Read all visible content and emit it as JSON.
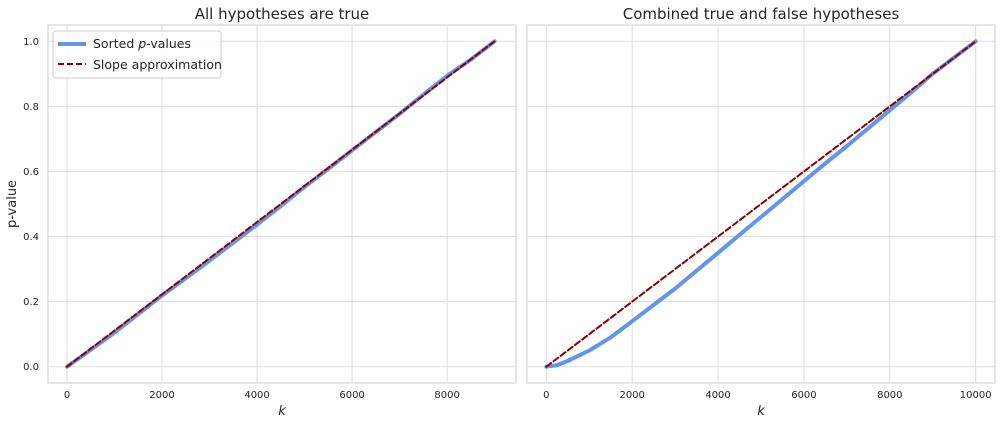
{
  "chart_data": [
    {
      "type": "line",
      "title": "All hypotheses are true",
      "xlabel": "k",
      "ylabel": "p-value",
      "xlim": [
        -400,
        9450
      ],
      "ylim": [
        -0.05,
        1.05
      ],
      "xticks": [
        0,
        2000,
        4000,
        6000,
        8000
      ],
      "yticks": [
        0.0,
        0.2,
        0.4,
        0.6,
        0.8,
        1.0
      ],
      "ytick_labels": [
        "0.0",
        "0.2",
        "0.4",
        "0.6",
        "0.8",
        "1.0"
      ],
      "grid": true,
      "legend": {
        "placement": "top-left",
        "entries": [
          {
            "label_prefix": "Sorted ",
            "label_italic": "p",
            "label_suffix": "-values"
          },
          {
            "label": "Slope approximation"
          }
        ]
      },
      "series": [
        {
          "name": "Sorted p-values",
          "color": "#6495ed",
          "style": "solid",
          "x": [
            0,
            500,
            1000,
            1500,
            2000,
            2500,
            3000,
            3500,
            4000,
            4500,
            5000,
            5500,
            6000,
            6500,
            7000,
            7500,
            8000,
            8500,
            9000
          ],
          "y": [
            0.0,
            0.052,
            0.105,
            0.162,
            0.219,
            0.272,
            0.326,
            0.381,
            0.437,
            0.494,
            0.553,
            0.608,
            0.665,
            0.721,
            0.777,
            0.836,
            0.894,
            0.944,
            1.0
          ]
        },
        {
          "name": "Slope approximation",
          "color": "#8b0000",
          "style": "dashed",
          "x": [
            0,
            9000
          ],
          "y": [
            0.0,
            1.0
          ]
        }
      ]
    },
    {
      "type": "line",
      "title": "Combined true and false hypotheses",
      "xlabel": "k",
      "ylabel": "",
      "xlim": [
        -450,
        10450
      ],
      "ylim": [
        -0.05,
        1.05
      ],
      "xticks": [
        0,
        2000,
        4000,
        6000,
        8000,
        10000
      ],
      "yticks": [
        0.0,
        0.2,
        0.4,
        0.6,
        0.8,
        1.0
      ],
      "grid": true,
      "series": [
        {
          "name": "Sorted p-values",
          "color": "#6495ed",
          "style": "solid",
          "x": [
            0,
            250,
            500,
            1000,
            1500,
            2000,
            2500,
            3000,
            3500,
            4000,
            4500,
            5000,
            5500,
            6000,
            6500,
            7000,
            7500,
            8000,
            8500,
            9000,
            9500,
            10000
          ],
          "y": [
            0.0,
            0.005,
            0.018,
            0.05,
            0.09,
            0.14,
            0.19,
            0.24,
            0.295,
            0.35,
            0.405,
            0.46,
            0.515,
            0.57,
            0.625,
            0.678,
            0.733,
            0.788,
            0.843,
            0.9,
            0.95,
            1.0
          ]
        },
        {
          "name": "Slope approximation",
          "color": "#8b0000",
          "style": "dashed",
          "x": [
            0,
            10000
          ],
          "y": [
            0.0,
            1.0
          ]
        }
      ]
    }
  ]
}
